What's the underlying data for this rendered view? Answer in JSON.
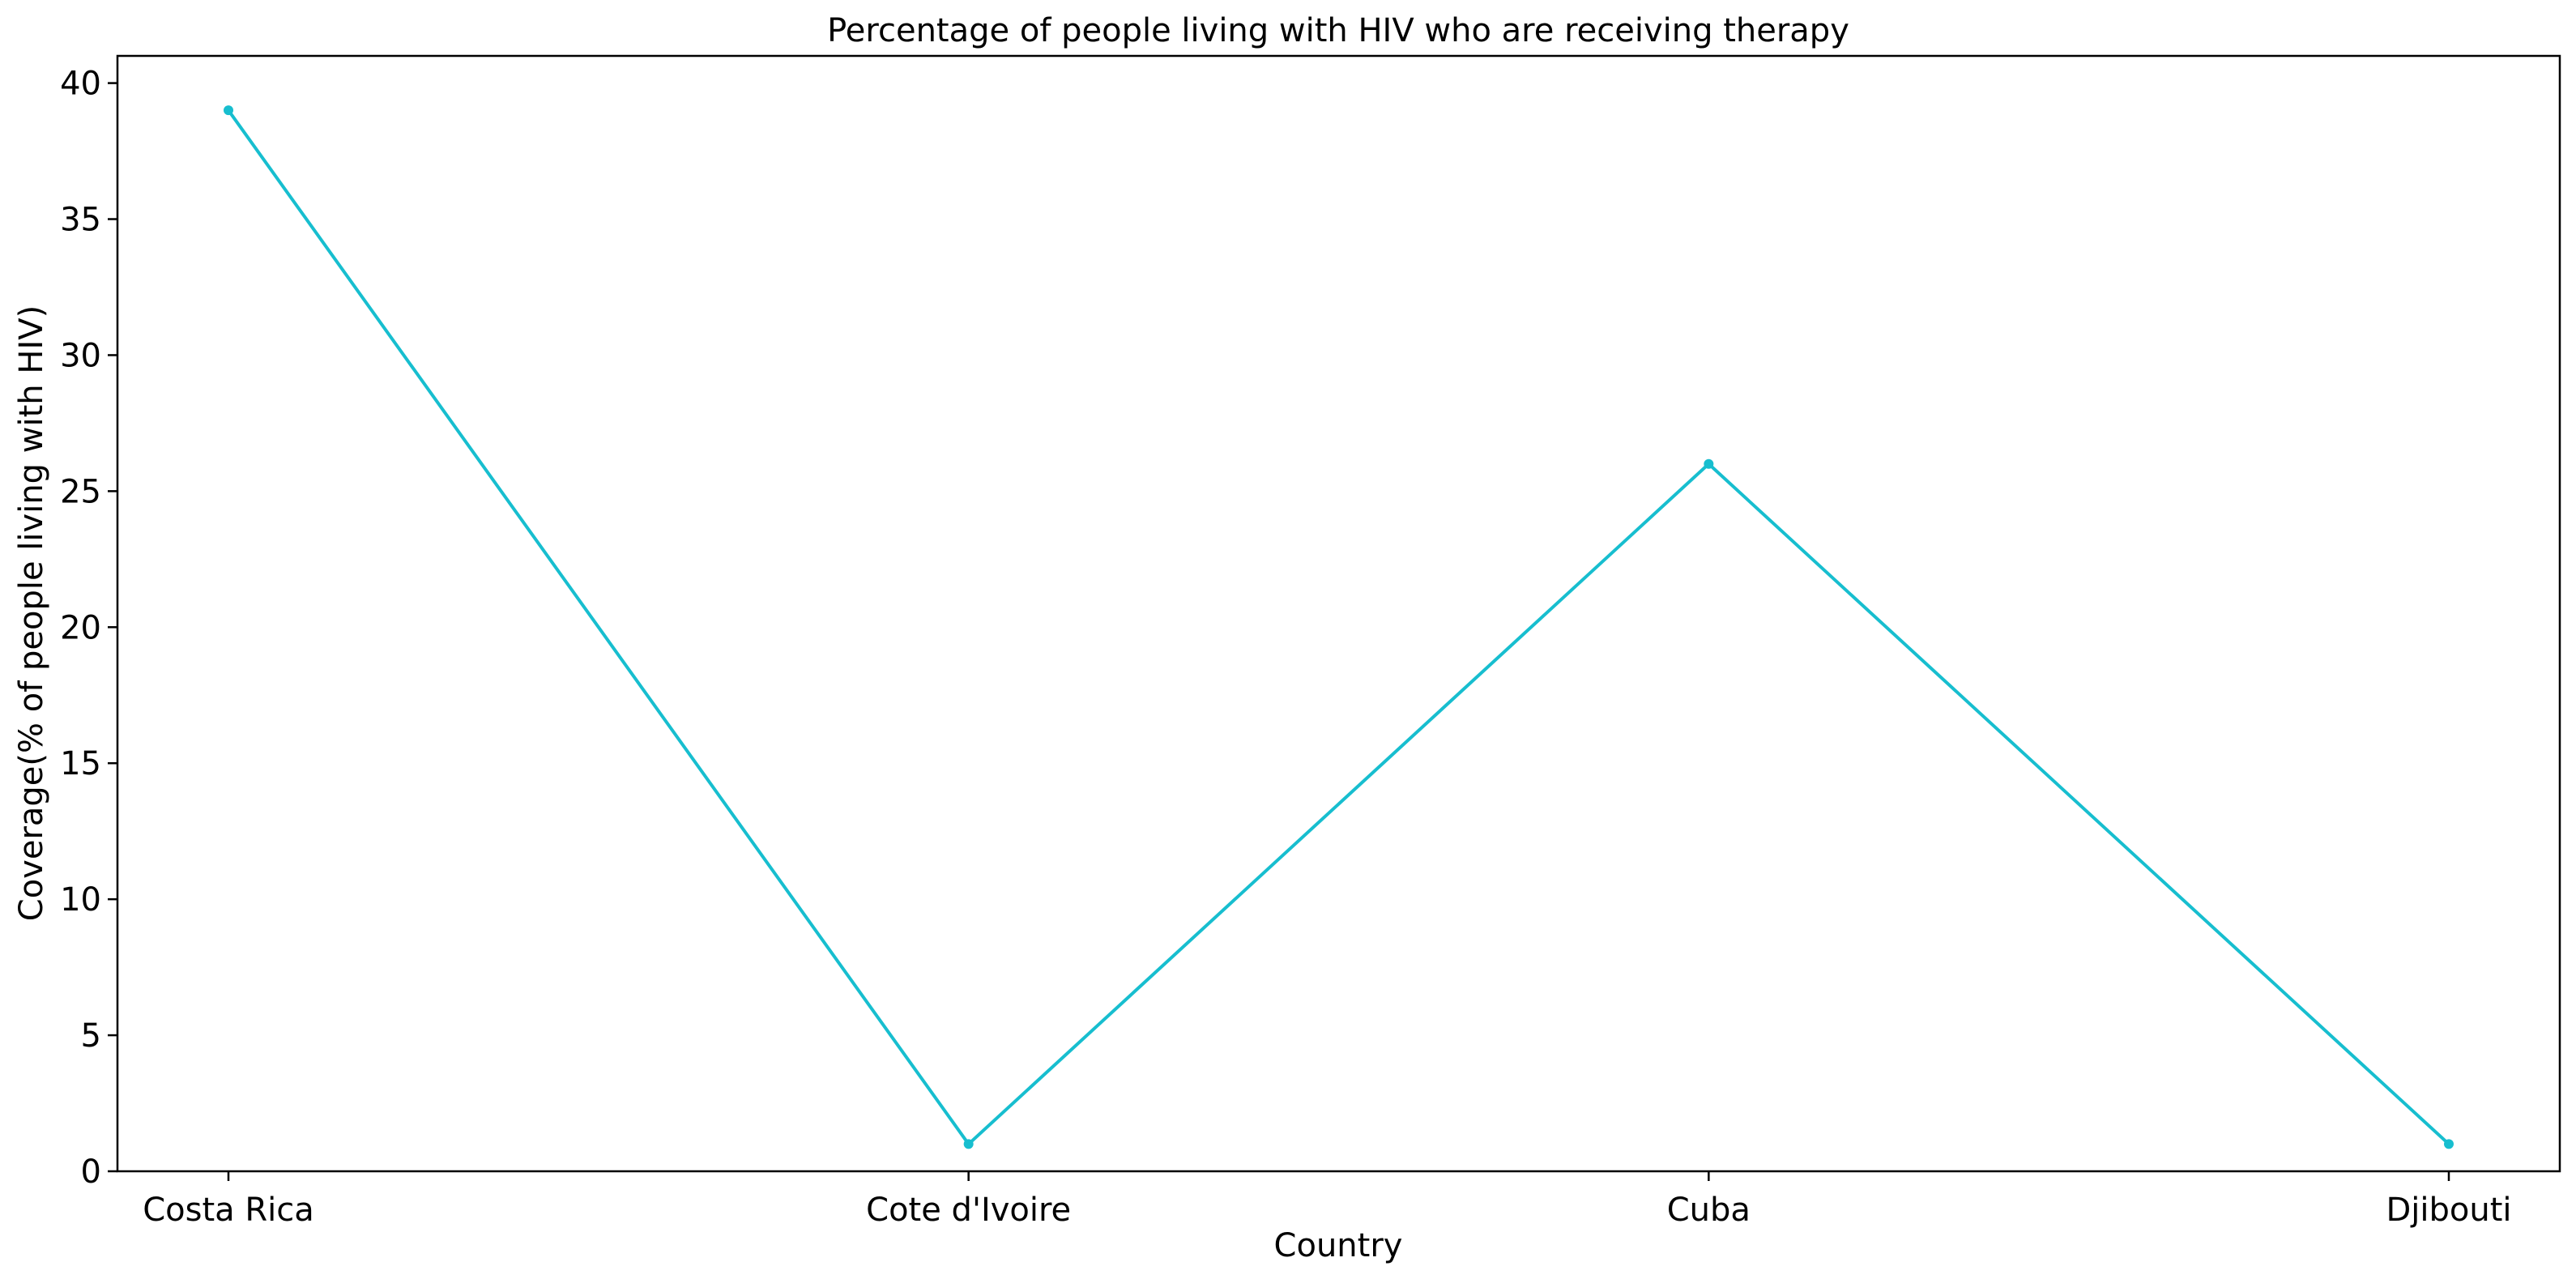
{
  "chart_data": {
    "type": "line",
    "title": "Percentage of people living with HIV who are receiving therapy",
    "xlabel": "Country",
    "ylabel": "Coverage(% of people living with HIV)",
    "categories": [
      "Costa Rica",
      "Cote d'Ivoire",
      "Cuba",
      "Djibouti"
    ],
    "series": [
      {
        "values": [
          39,
          1,
          26,
          1
        ],
        "color": "#17becf"
      }
    ],
    "ylim": [
      0,
      41
    ],
    "yticks": [
      0,
      5,
      10,
      15,
      20,
      25,
      30,
      35,
      40
    ],
    "grid": false,
    "legend": "none"
  }
}
